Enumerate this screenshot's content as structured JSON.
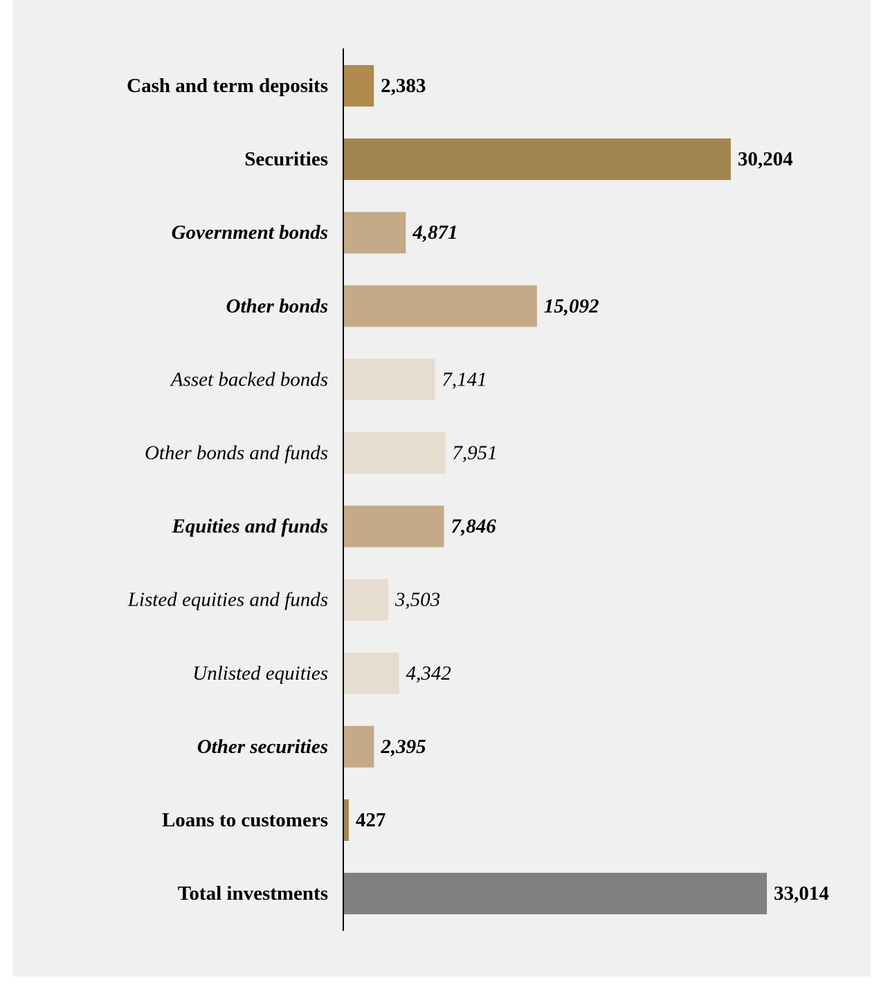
{
  "chart_data": {
    "type": "bar",
    "orientation": "horizontal",
    "title": "",
    "xlabel": "",
    "ylabel": "",
    "grid": false,
    "legend": "none",
    "xlim": [
      0,
      33014
    ],
    "categories": [
      "Cash and term deposits",
      "Securities",
      "Government bonds",
      "Other bonds",
      "Asset backed bonds",
      "Other bonds and funds",
      "Equities and funds",
      "Listed equities and funds",
      "Unlisted equities",
      "Other securities",
      "Loans to customers",
      "Total investments"
    ],
    "values": [
      2383,
      30204,
      4871,
      15092,
      7141,
      7951,
      7846,
      3503,
      4342,
      2395,
      427,
      33014
    ],
    "value_labels": [
      "2,383",
      "30,204",
      "4,871",
      "15,092",
      "7,141",
      "7,951",
      "7,846",
      "3,503",
      "4,342",
      "2,395",
      "427",
      "33,014"
    ],
    "levels": [
      "top",
      "top",
      "sub",
      "sub",
      "subsub",
      "subsub",
      "sub",
      "subsub",
      "subsub",
      "sub",
      "top",
      "total"
    ],
    "colors": [
      "#b08a4e",
      "#a38552",
      "#c4aa87",
      "#c4aa87",
      "#e6dccf",
      "#e6dccf",
      "#c4aa87",
      "#e6dccf",
      "#e6dccf",
      "#c4aa87",
      "#a38552",
      "#808080"
    ],
    "axis_color": "#000000",
    "background_color": "#f0f0f0"
  }
}
